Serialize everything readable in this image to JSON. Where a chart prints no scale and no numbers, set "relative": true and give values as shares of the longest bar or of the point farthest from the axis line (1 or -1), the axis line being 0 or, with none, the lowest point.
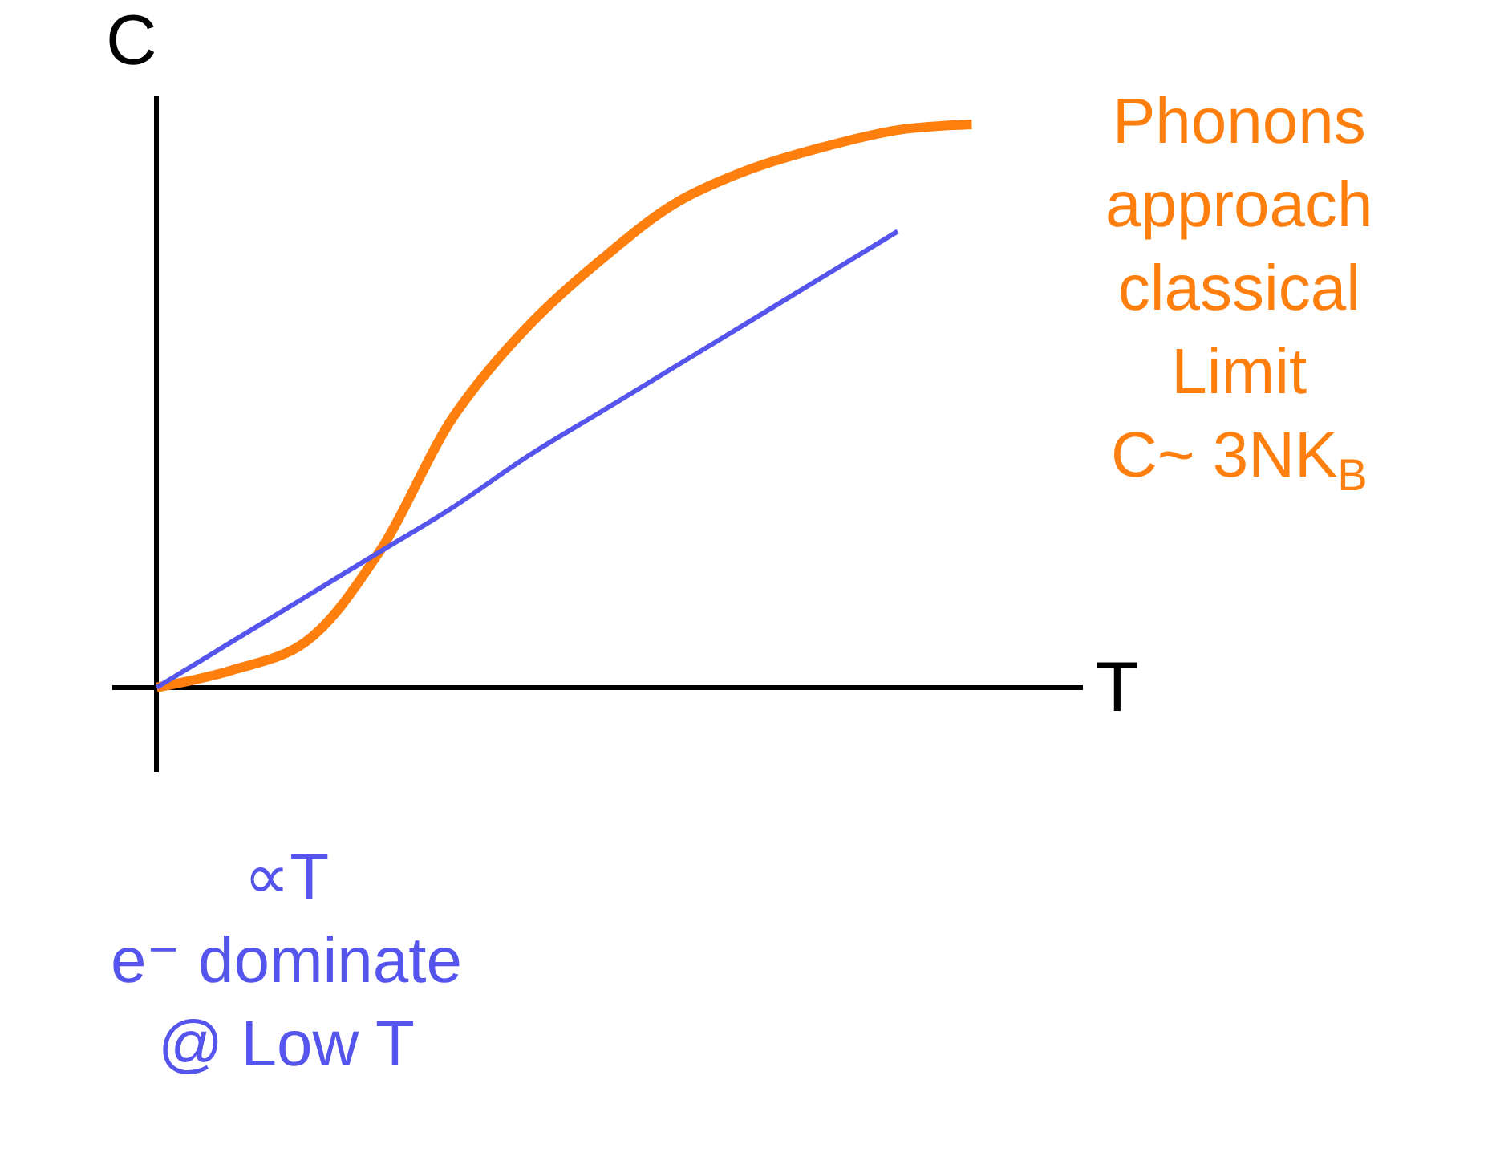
{
  "chart_data": {
    "type": "line",
    "relative": true,
    "xlabel": "T",
    "ylabel": "C",
    "categories": [
      null,
      null,
      null,
      null,
      null,
      null,
      null,
      null,
      null,
      null,
      null,
      null
    ],
    "series": [
      {
        "color": "#ff7f0e",
        "values": [
          0,
          0.03,
          0.08,
          0.24,
          0.48,
          0.64,
          0.76,
          0.86,
          0.92,
          0.96,
          0.99,
          1.0
        ]
      },
      {
        "color": "#5555ee",
        "values": [
          0,
          0.08,
          0.16,
          0.24,
          0.32,
          0.41,
          0.49,
          0.57,
          0.65,
          0.73,
          0.81,
          null
        ]
      }
    ],
    "annotations": [
      "Phonons approach classical Limit C~ 3NK$_{B}$",
      "∝T e⁻ dominate @ Low T"
    ],
    "marker": "none",
    "line_style": "solid"
  }
}
